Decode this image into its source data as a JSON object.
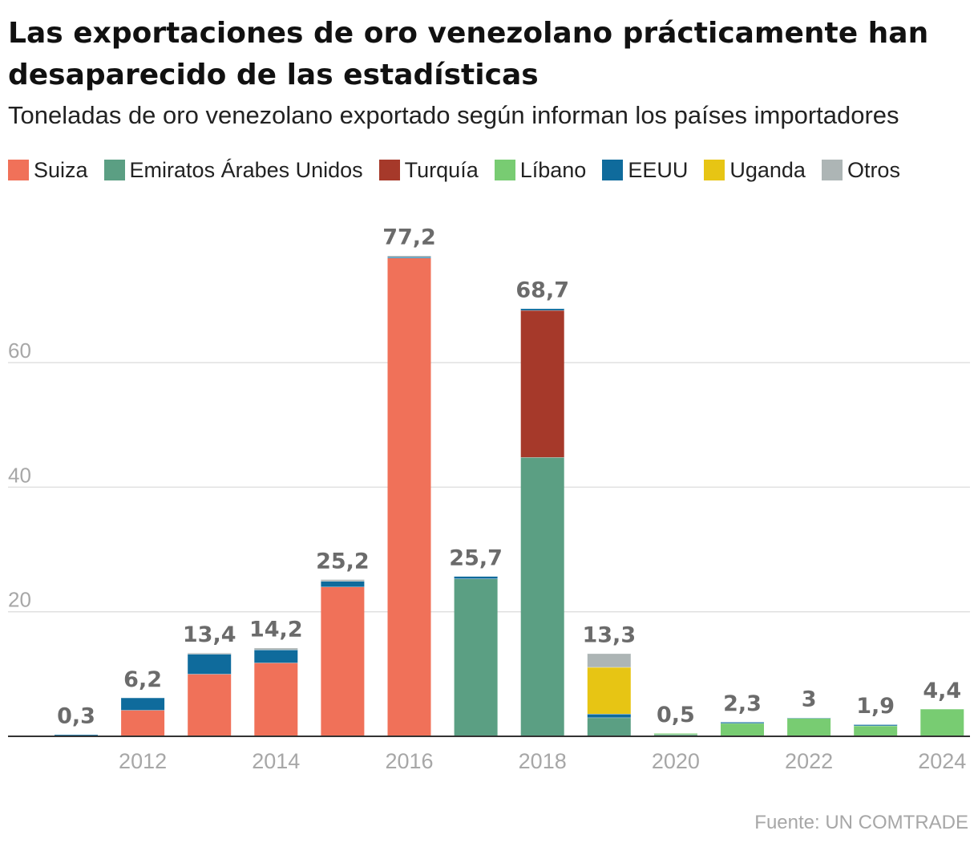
{
  "header": {
    "title": "Las exportaciones de oro venezolano prácticamente han desaparecido de las estadísticas",
    "subtitle": "Toneladas de oro venezolano exportado según informan los países importadores"
  },
  "footer": {
    "source": "Fuente: UN COMTRADE"
  },
  "chart_data": {
    "type": "bar",
    "stacked": true,
    "title": "Las exportaciones de oro venezolano prácticamente han desaparecido de las estadísticas",
    "subtitle": "Toneladas de oro venezolano exportado según informan los países importadores",
    "xlabel": "",
    "ylabel": "",
    "ylim": [
      0,
      80
    ],
    "y_ticks": [
      20,
      40,
      60
    ],
    "grid": true,
    "legend_position": "top",
    "categories": [
      "2011",
      "2012",
      "2013",
      "2014",
      "2015",
      "2016",
      "2017",
      "2018",
      "2019",
      "2020",
      "2021",
      "2022",
      "2023",
      "2024"
    ],
    "x_tick_labels": [
      "",
      "2012",
      "",
      "2014",
      "",
      "2016",
      "",
      "2018",
      "",
      "2020",
      "",
      "2022",
      "",
      "2024"
    ],
    "totals": [
      "0,3",
      "6,2",
      "13,4",
      "14,2",
      "25,2",
      "77,2",
      "25,7",
      "68,7",
      "13,3",
      "0,5",
      "2,3",
      "3",
      "1,9",
      "4,4"
    ],
    "series": [
      {
        "name": "Suiza",
        "color": "#f07159",
        "values": [
          0,
          4.2,
          10.0,
          11.8,
          24.0,
          76.8,
          0,
          0,
          0,
          0,
          0,
          0,
          0,
          0
        ]
      },
      {
        "name": "Emiratos Árabes Unidos",
        "color": "#5b9f83",
        "values": [
          0,
          0,
          0,
          0,
          0,
          0,
          25.3,
          44.8,
          3.0,
          0.3,
          0,
          0,
          0,
          0
        ]
      },
      {
        "name": "Turquía",
        "color": "#a6392a",
        "values": [
          0,
          0,
          0,
          0,
          0,
          0,
          0,
          23.6,
          0,
          0,
          0,
          0,
          0,
          0
        ]
      },
      {
        "name": "Líbano",
        "color": "#78cc72",
        "values": [
          0,
          0,
          0,
          0,
          0,
          0,
          0,
          0,
          0,
          0.2,
          2.1,
          2.9,
          1.7,
          4.4
        ]
      },
      {
        "name": "EEUU",
        "color": "#0f6b9c",
        "values": [
          0.3,
          2.0,
          3.2,
          2.1,
          0.9,
          0.2,
          0.4,
          0.3,
          0.6,
          0,
          0.2,
          0.1,
          0.2,
          0
        ]
      },
      {
        "name": "Uganda",
        "color": "#e7c514",
        "values": [
          0,
          0,
          0,
          0,
          0,
          0,
          0,
          0,
          7.5,
          0,
          0,
          0,
          0,
          0
        ]
      },
      {
        "name": "Otros",
        "color": "#adb5b5",
        "values": [
          0,
          0,
          0.2,
          0.3,
          0.3,
          0.2,
          0,
          0,
          2.2,
          0,
          0,
          0,
          0,
          0
        ]
      }
    ]
  }
}
